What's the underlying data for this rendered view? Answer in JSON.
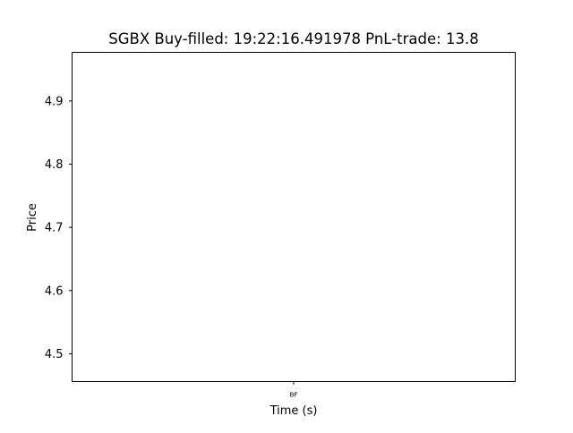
{
  "chart_data": {
    "type": "line",
    "title": "SGBX  Buy-filled:  19:22:16.491978  PnL-trade:  13.8",
    "xlabel": "Time (s)",
    "ylabel": "Price",
    "x_ticks": [
      "BF"
    ],
    "y_ticks": [
      4.5,
      4.6,
      4.7,
      4.8,
      4.9
    ],
    "y_tick_labels": [
      "4.5",
      "4.6",
      "4.7",
      "4.8",
      "4.9"
    ],
    "ylim": [
      4.456,
      4.977
    ],
    "grid": false,
    "series": []
  }
}
